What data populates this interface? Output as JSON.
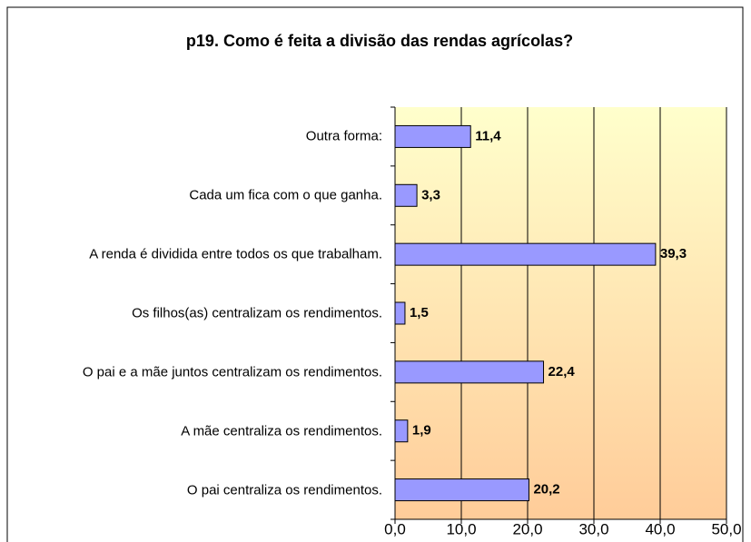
{
  "chart_data": {
    "type": "bar",
    "orientation": "horizontal",
    "title": "p19. Como é feita a divisão das rendas agrícolas?",
    "categories": [
      "Outra forma:",
      "Cada um fica com o que ganha.",
      "A renda é dividida entre todos os que trabalham.",
      "Os filhos(as) centralizam os rendimentos.",
      "O pai e a mãe juntos centralizam os rendimentos.",
      "A mãe centraliza os rendimentos.",
      "O pai centraliza os rendimentos."
    ],
    "values": [
      11.4,
      3.3,
      39.3,
      1.5,
      22.4,
      1.9,
      20.2
    ],
    "value_labels": [
      "11,4",
      "3,3",
      "39,3",
      "1,5",
      "22,4",
      "1,9",
      "20,2"
    ],
    "color": "#9999ff",
    "xlim": [
      0,
      50
    ],
    "xticks": [
      {
        "value": 0,
        "label": "0,0"
      },
      {
        "value": 10,
        "label": "10,0"
      },
      {
        "value": 20,
        "label": "20,0"
      },
      {
        "value": 30,
        "label": "30,0"
      },
      {
        "value": 40,
        "label": "40,0"
      },
      {
        "value": 50,
        "label": "50,0"
      }
    ],
    "grid": true
  }
}
